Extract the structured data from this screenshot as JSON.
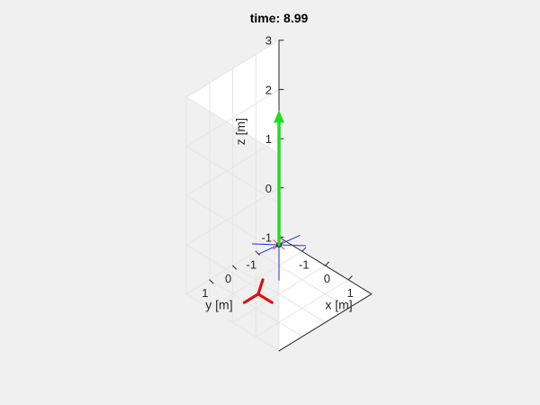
{
  "chart_data": {
    "type": "3d-line",
    "title": "time: 8.99",
    "xlabel": "x [m]",
    "ylabel": "y [m]",
    "zlabel": "z [m]",
    "xlim": [
      -2,
      2
    ],
    "ylim": [
      -2,
      2
    ],
    "zlim": [
      -1,
      3
    ],
    "xticks": [
      "-1",
      "0",
      "1"
    ],
    "yticks": [
      "-1",
      "0",
      "1"
    ],
    "zticks": [
      "-1",
      "0",
      "1",
      "2",
      "3"
    ],
    "grid": true,
    "background": "#f0f0f0",
    "colors": {
      "plot_background": "#ffffff",
      "grid": "#e6e6e6",
      "axis_line": "#262626",
      "thrust_arrow": "#22dd22",
      "ground_marker": "#e01010",
      "body_axes": "#2233cc",
      "body_marker": "#e04040"
    },
    "thrust_arrow": {
      "base": [
        0,
        0,
        0
      ],
      "tip": [
        0,
        0,
        2.7
      ]
    },
    "body_position": [
      0,
      0,
      0
    ],
    "body_axes": [
      {
        "from": [
          0,
          0,
          0
        ],
        "to": [
          0,
          1.15,
          0.35
        ]
      },
      {
        "from": [
          0,
          0,
          0
        ],
        "to": [
          0.9,
          0,
          0.45
        ]
      },
      {
        "from": [
          0,
          0,
          0
        ],
        "to": [
          0,
          0,
          0.72
        ]
      }
    ],
    "ground_marker": {
      "center": [
        -0.45,
        0.45,
        -1
      ],
      "arms": [
        [
          -0.45,
          1.05,
          -1
        ],
        [
          0.15,
          0.45,
          -1
        ],
        [
          -0.85,
          -0.15,
          -1
        ]
      ]
    }
  }
}
